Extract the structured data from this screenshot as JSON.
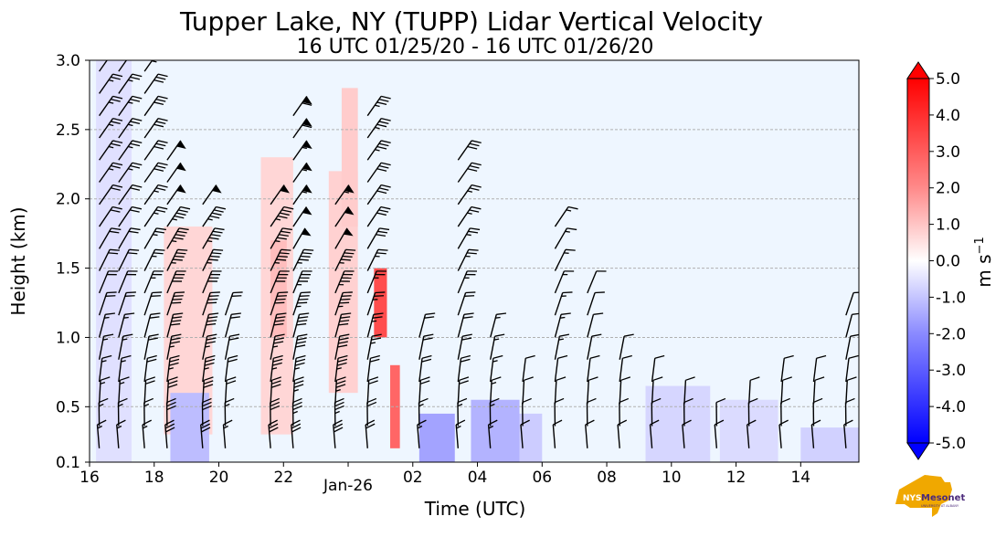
{
  "chart_data": {
    "type": "heatmap",
    "title": "Tupper Lake, NY (TUPP) Lidar Vertical Velocity",
    "subtitle": "16 UTC 01/25/20 - 16 UTC 01/26/20",
    "xlabel": "Time (UTC)",
    "ylabel": "Height (km)",
    "x_ticks": [
      {
        "hour": 0,
        "label": "16"
      },
      {
        "hour": 2,
        "label": "18"
      },
      {
        "hour": 4,
        "label": "20"
      },
      {
        "hour": 6,
        "label": "22"
      },
      {
        "hour": 8,
        "label": "Jan-26"
      },
      {
        "hour": 10,
        "label": "02"
      },
      {
        "hour": 12,
        "label": "04"
      },
      {
        "hour": 14,
        "label": "06"
      },
      {
        "hour": 16,
        "label": "08"
      },
      {
        "hour": 18,
        "label": "10"
      },
      {
        "hour": 20,
        "label": "12"
      },
      {
        "hour": 22,
        "label": "14"
      }
    ],
    "xlim_hours": [
      0,
      23.8
    ],
    "y_ticks": [
      {
        "value": 0.1,
        "label": "0.1"
      },
      {
        "value": 0.5,
        "label": "0.5"
      },
      {
        "value": 1.0,
        "label": "1.0"
      },
      {
        "value": 1.5,
        "label": "1.5"
      },
      {
        "value": 2.0,
        "label": "2.0"
      },
      {
        "value": 2.5,
        "label": "2.5"
      },
      {
        "value": 3.0,
        "label": "3.0"
      }
    ],
    "ylim": [
      0.1,
      3.0
    ],
    "grid_y": [
      0.5,
      1.0,
      1.5,
      2.0,
      2.5
    ],
    "colorbar": {
      "label": "m s",
      "label_sup": "−1",
      "vmin": -5.0,
      "vmax": 5.0,
      "ticks": [
        "5.0",
        "4.0",
        "3.0",
        "2.0",
        "1.0",
        "0.0",
        "-1.0",
        "-2.0",
        "-3.0",
        "-4.0",
        "-5.0"
      ]
    },
    "velocity_patches": [
      {
        "h0": 0.2,
        "h1": 1.3,
        "z0": 0.1,
        "z1": 3.0,
        "w": -0.6
      },
      {
        "h0": 2.3,
        "h1": 3.8,
        "z0": 0.3,
        "z1": 1.8,
        "w": 0.8
      },
      {
        "h0": 2.5,
        "h1": 3.7,
        "z0": 0.1,
        "z1": 0.6,
        "w": -1.3
      },
      {
        "h0": 5.3,
        "h1": 6.3,
        "z0": 0.3,
        "z1": 2.3,
        "w": 0.8
      },
      {
        "h0": 5.6,
        "h1": 6.1,
        "z0": 1.0,
        "z1": 1.7,
        "w": 1.3
      },
      {
        "h0": 7.4,
        "h1": 8.3,
        "z0": 0.6,
        "z1": 2.2,
        "w": 0.9
      },
      {
        "h0": 7.8,
        "h1": 8.3,
        "z0": 1.8,
        "z1": 2.8,
        "w": 1.0
      },
      {
        "h0": 8.8,
        "h1": 9.2,
        "z0": 1.0,
        "z1": 1.5,
        "w": 3.5
      },
      {
        "h0": 9.3,
        "h1": 9.6,
        "z0": 0.2,
        "z1": 0.8,
        "w": 3.0
      },
      {
        "h0": 10.2,
        "h1": 11.3,
        "z0": 0.1,
        "z1": 0.45,
        "w": -1.8
      },
      {
        "h0": 11.8,
        "h1": 13.3,
        "z0": 0.1,
        "z1": 0.55,
        "w": -1.5
      },
      {
        "h0": 13.3,
        "h1": 14.0,
        "z0": 0.1,
        "z1": 0.45,
        "w": -1.0
      },
      {
        "h0": 17.2,
        "h1": 19.2,
        "z0": 0.1,
        "z1": 0.65,
        "w": -0.8
      },
      {
        "h0": 19.5,
        "h1": 21.3,
        "z0": 0.1,
        "z1": 0.55,
        "w": -0.7
      },
      {
        "h0": 22.0,
        "h1": 23.8,
        "z0": 0.1,
        "z1": 0.35,
        "w": -0.9
      }
    ],
    "wind_barb_columns": [
      {
        "hour": 0.3,
        "z_top": 3.0,
        "speed": 25
      },
      {
        "hour": 0.9,
        "z_top": 3.0,
        "speed": 25
      },
      {
        "hour": 1.7,
        "z_top": 3.0,
        "speed": 30
      },
      {
        "hour": 2.4,
        "z_top": 2.4,
        "speed": 55
      },
      {
        "hour": 3.5,
        "z_top": 2.0,
        "speed": 55
      },
      {
        "hour": 4.2,
        "z_top": 1.2,
        "speed": 30
      },
      {
        "hour": 5.6,
        "z_top": 2.0,
        "speed": 55
      },
      {
        "hour": 6.3,
        "z_top": 2.6,
        "speed": 60
      },
      {
        "hour": 7.6,
        "z_top": 2.0,
        "speed": 60
      },
      {
        "hour": 8.6,
        "z_top": 2.6,
        "speed": 35
      },
      {
        "hour": 10.2,
        "z_top": 1.1,
        "speed": 30
      },
      {
        "hour": 11.4,
        "z_top": 2.4,
        "speed": 30
      },
      {
        "hour": 12.4,
        "z_top": 1.0,
        "speed": 25
      },
      {
        "hour": 13.4,
        "z_top": 0.8,
        "speed": 20
      },
      {
        "hour": 14.4,
        "z_top": 1.9,
        "speed": 20
      },
      {
        "hour": 15.4,
        "z_top": 1.4,
        "speed": 15
      },
      {
        "hour": 16.4,
        "z_top": 0.9,
        "speed": 15
      },
      {
        "hour": 17.4,
        "z_top": 0.7,
        "speed": 15
      },
      {
        "hour": 18.4,
        "z_top": 0.6,
        "speed": 15
      },
      {
        "hour": 19.4,
        "z_top": 0.5,
        "speed": 15
      },
      {
        "hour": 20.4,
        "z_top": 0.6,
        "speed": 15
      },
      {
        "hour": 21.4,
        "z_top": 0.7,
        "speed": 15
      },
      {
        "hour": 22.4,
        "z_top": 0.8,
        "speed": 15
      },
      {
        "hour": 23.4,
        "z_top": 1.2,
        "speed": 15
      }
    ]
  },
  "logo": {
    "text_primary": "NYS",
    "text_secondary": "Mesonet",
    "text_tertiary": "UNIVERSITY AT ALBANY"
  },
  "colors": {
    "background": "#eef6ff",
    "positive": "#ff0000",
    "negative": "#0000ff",
    "grid": "#b0b0b0",
    "logo_gold": "#f0a800",
    "logo_purple": "#4b2a7b"
  }
}
